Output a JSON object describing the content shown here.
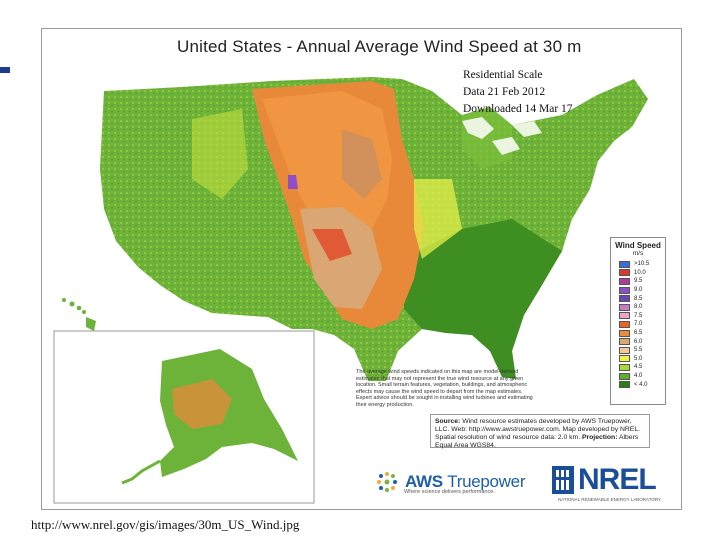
{
  "map": {
    "title": "United States - Annual Average Wind Speed at 30 m",
    "overlay_lines": [
      "Residential Scale",
      "Data 21 Feb 2012",
      "Downloaded 14 Mar 17"
    ],
    "legend": {
      "title": "Wind Speed",
      "unit": "m/s",
      "classes": [
        {
          "label": ">10.5",
          "color": "#3a6fd8"
        },
        {
          "label": "10.0",
          "color": "#d8392b"
        },
        {
          "label": "9.5",
          "color": "#b03a9a"
        },
        {
          "label": "9.0",
          "color": "#8e4fc6"
        },
        {
          "label": "8.5",
          "color": "#6a48b0"
        },
        {
          "label": "8.0",
          "color": "#c77ac8"
        },
        {
          "label": "7.5",
          "color": "#f0a3c4"
        },
        {
          "label": "7.0",
          "color": "#e8642c"
        },
        {
          "label": "6.5",
          "color": "#f08a3c"
        },
        {
          "label": "6.0",
          "color": "#d9a674"
        },
        {
          "label": "5.5",
          "color": "#f2c79a"
        },
        {
          "label": "5.0",
          "color": "#f1f24a"
        },
        {
          "label": "4.5",
          "color": "#a8d83a"
        },
        {
          "label": "4.0",
          "color": "#5fae2e"
        },
        {
          "label": "< 4.0",
          "color": "#2f7a1e"
        }
      ]
    },
    "note": "The average wind speeds indicated on this map are model-derived estimates that may not represent the true wind resource at any given location. Small terrain features, vegetation, buildings, and atmospheric effects may cause the wind speed to depart from the map estimates. Expert advice should be sought in installing wind turbines and estimating their energy production.",
    "source": {
      "label": "Source:",
      "text": "Wind resource estimates developed by AWS Truepower, LLC. Web: http://www.awstruepower.com. Map developed by NREL. Spatial resolution of wind resource data: 2.0 km.",
      "projection_label": "Projection:",
      "projection": "Albers Equal Area WGS84."
    },
    "aws_logo": {
      "name_bold": "AWS ",
      "name_light": "Truepower",
      "tagline": "Where science delivers performance."
    },
    "nrel_logo": {
      "name": "NREL",
      "subtitle": "NATIONAL RENEWABLE ENERGY LABORATORY"
    }
  },
  "caption": "http://www.nrel.gov/gis/images/30m_US_Wind.jpg"
}
